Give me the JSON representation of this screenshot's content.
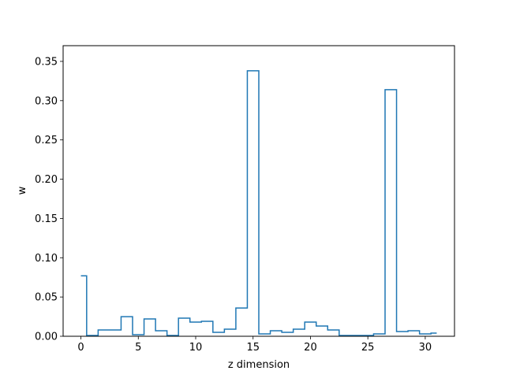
{
  "chart_data": {
    "type": "line",
    "drawstyle": "steps-mid",
    "title": "",
    "xlabel": "z dimension",
    "ylabel": "w",
    "xlim": [
      -1.55,
      32.55
    ],
    "ylim": [
      0,
      0.37
    ],
    "xticks": [
      0,
      5,
      10,
      15,
      20,
      25,
      30
    ],
    "yticks": [
      0.0,
      0.05,
      0.1,
      0.15,
      0.2,
      0.25,
      0.3,
      0.35
    ],
    "ytick_labels": [
      "0.00",
      "0.05",
      "0.10",
      "0.15",
      "0.20",
      "0.25",
      "0.30",
      "0.35"
    ],
    "grid": false,
    "series": [
      {
        "color": "#1f77b4",
        "x": [
          0,
          1,
          2,
          3,
          4,
          5,
          6,
          7,
          8,
          9,
          10,
          11,
          12,
          13,
          14,
          15,
          16,
          17,
          18,
          19,
          20,
          21,
          22,
          23,
          24,
          25,
          26,
          27,
          28,
          29,
          30,
          31
        ],
        "values": [
          0.077,
          0.001,
          0.008,
          0.008,
          0.025,
          0.002,
          0.022,
          0.007,
          0.001,
          0.023,
          0.018,
          0.019,
          0.005,
          0.009,
          0.036,
          0.338,
          0.003,
          0.007,
          0.005,
          0.009,
          0.018,
          0.013,
          0.008,
          0.001,
          0.001,
          0.001,
          0.003,
          0.314,
          0.006,
          0.007,
          0.003,
          0.004
        ]
      }
    ]
  }
}
